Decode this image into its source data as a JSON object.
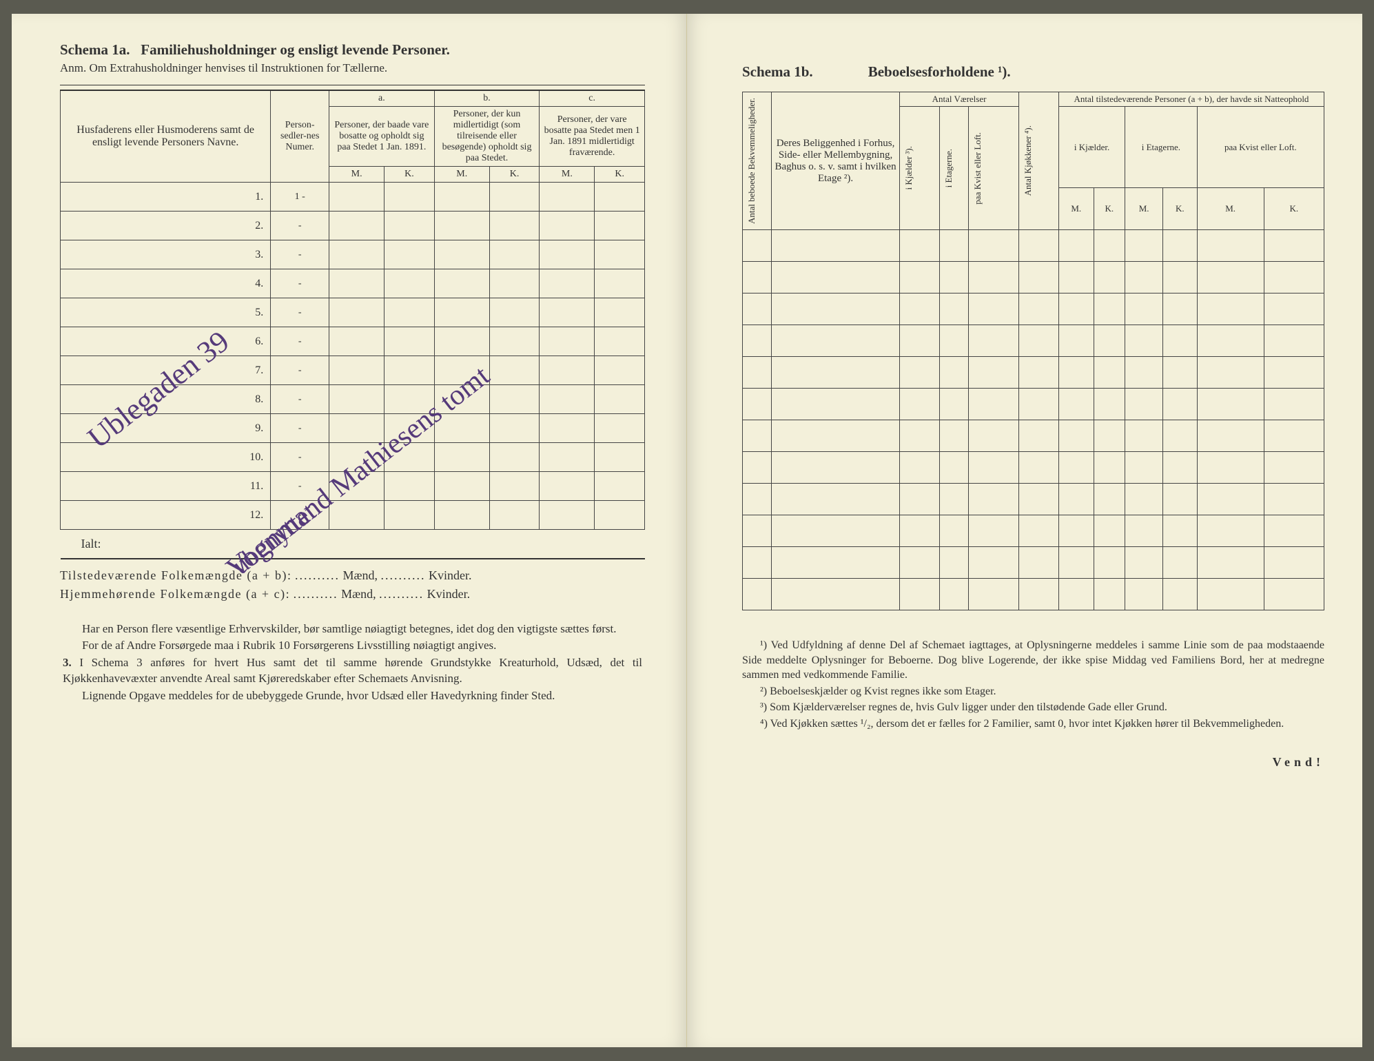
{
  "left": {
    "schema_label": "Schema 1a.",
    "schema_title": "Familiehusholdninger og ensligt levende Personer.",
    "anm": "Anm.  Om Extrahusholdninger henvises til Instruktionen for Tællerne.",
    "col_hus": "Husfaderens eller Husmoderens samt de ensligt levende Personers Navne.",
    "col_num": "Person-sedler-nes Numer.",
    "abc": {
      "a_label": "a.",
      "a_text": "Personer, der baade vare bosatte og opholdt sig paa Stedet 1 Jan. 1891.",
      "b_label": "b.",
      "b_text": "Personer, der kun midlertidigt (som tilreisende eller besøgende) opholdt sig paa Stedet.",
      "c_label": "c.",
      "c_text": "Personer, der vare bosatte paa Stedet men 1 Jan. 1891 midlertidigt fraværende."
    },
    "mk_m": "M.",
    "mk_k": "K.",
    "rows": [
      "1.",
      "2.",
      "3.",
      "4.",
      "5.",
      "6.",
      "7.",
      "8.",
      "9.",
      "10.",
      "11.",
      "12."
    ],
    "row_marks": [
      "1 -",
      "-",
      "-",
      "-",
      "-",
      "-",
      "-",
      "-",
      "-",
      "-",
      "-",
      "-"
    ],
    "ialt": "Ialt:",
    "line1_a": "Tilstedeværende Folkemængde (a + b):",
    "line2_a": "Hjemmehørende Folkemængde (a + c):",
    "maend": "Mænd,",
    "kvinder": "Kvinder.",
    "handwriting": {
      "hw1": "Ublegaden 39",
      "hw2": "Vognmand Mathiesens tomt",
      "hw3": "ubenyttet"
    },
    "notes": {
      "p1": "Har en Person flere væsentlige Erhvervskilder, bør samtlige nøiagtigt betegnes, idet dog den vigtigste sættes først.",
      "p2": "For de af Andre Forsørgede maa i Rubrik 10 Forsørgerens Livsstilling nøiagtigt angives.",
      "p3_num": "3.",
      "p3": "I Schema 3 anføres for hvert Hus samt det til samme hørende Grundstykke Kreaturhold, Udsæd, det til Kjøkkenhavevæxter anvendte Areal samt Kjøreredskaber efter Schemaets Anvisning.",
      "p4": "Lignende Opgave meddeles for de ubebyggede Grunde, hvor Udsæd eller Havedyrkning finder Sted."
    }
  },
  "right": {
    "schema_label": "Schema 1b.",
    "schema_title": "Beboelsesforholdene ¹).",
    "cols": {
      "c1": "Antal beboede Bekvemmeligheder.",
      "c2": "Deres Beliggenhed i Forhus, Side- eller Mellembygning, Baghus o. s. v. samt i hvilken Etage ²).",
      "grp_vaer": "Antal Værelser",
      "v1": "i Kjælder ³).",
      "v2": "i Etagerne.",
      "v3": "paa Kvist eller Loft.",
      "kjok": "Antal Kjøkkener ⁴).",
      "grp_pers": "Antal tilstedeværende Personer (a + b), der havde sit Natteophold",
      "p1": "i Kjælder.",
      "p2": "i Etagerne.",
      "p3": "paa Kvist eller Loft."
    },
    "mk_m": "M.",
    "mk_k": "K.",
    "row_count": 12,
    "footnotes": {
      "f1": "¹) Ved Udfyldning af denne Del af Schemaet iagttages, at Oplysningerne meddeles i samme Linie som de paa modstaaende Side meddelte Oplysninger for Beboerne. Dog blive Logerende, der ikke spise Middag ved Familiens Bord, her at medregne sammen med vedkommende Familie.",
      "f2": "²) Beboelseskjælder og Kvist regnes ikke som Etager.",
      "f3": "³) Som Kjælderværelser regnes de, hvis Gulv ligger under den tilstødende Gade eller Grund.",
      "f4": "⁴) Ved Kjøkken sættes ¹/₂, dersom det er fælles for 2 Familier, samt 0, hvor intet Kjøkken hører til Bekvemmeligheden."
    },
    "vend": "Vend!"
  }
}
